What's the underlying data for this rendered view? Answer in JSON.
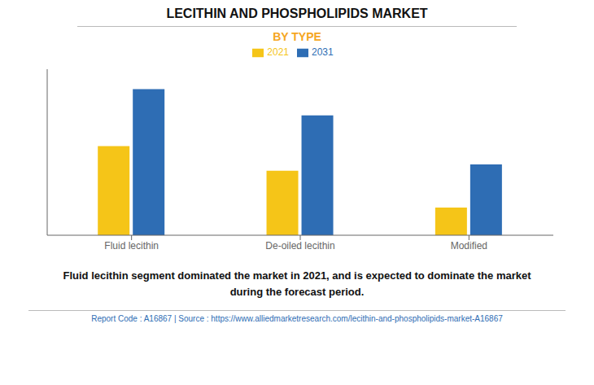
{
  "chart_data": {
    "type": "bar",
    "title": "LECITHIN AND PHOSPHOLIPIDS MARKET",
    "subtitle": "BY TYPE",
    "categories": [
      "Fluid lecithin",
      "De-oiled lecithin",
      "Modified"
    ],
    "series": [
      {
        "name": "2021",
        "color": "#F5C518",
        "values": [
          0.58,
          0.42,
          0.18
        ]
      },
      {
        "name": "2031",
        "color": "#2E6DB4",
        "values": [
          0.95,
          0.78,
          0.46
        ]
      }
    ],
    "ylim": [
      0,
      1.08
    ],
    "grid": false,
    "legend": "top",
    "tick_labels": "x",
    "annotations": [
      "Fluid lecithin segment dominated the market in 2021, and is expected to dominate the market\nduring the forecast period.",
      "Report Code : A16867   |   Source : https://www.alliedmarketresearch.com/lecithin-and-phospholipids-market-A16867"
    ]
  }
}
